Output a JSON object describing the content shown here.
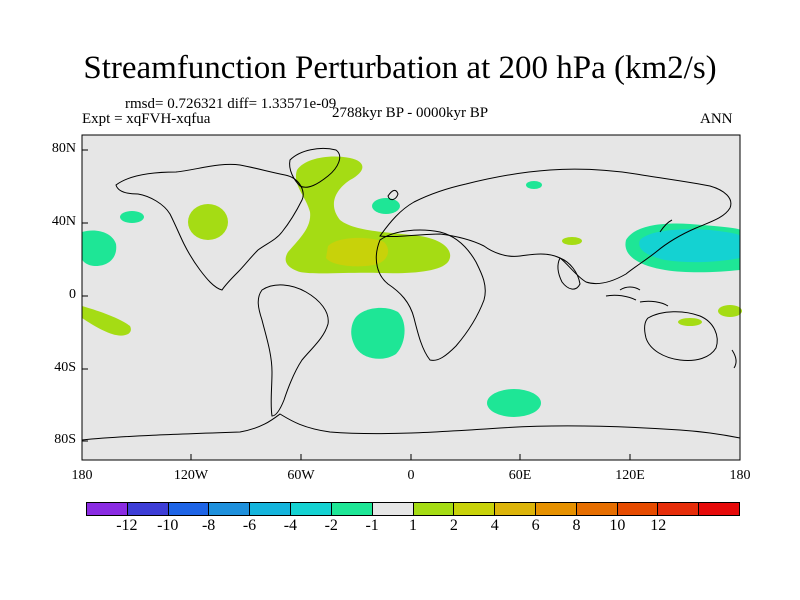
{
  "title": "Streamfunction Perturbation at 200 hPa (km2/s)",
  "stats": "rmsd= 0.726321 diff= 1.33571e-09",
  "period": "2788kyr BP - 0000kyr BP",
  "experiment": "Expt = xqFVH-xqfua",
  "season": "ANN",
  "y_ticks": [
    "80N",
    "40N",
    "0",
    "40S",
    "80S"
  ],
  "x_ticks": [
    "180",
    "120W",
    "60W",
    "0",
    "60E",
    "120E",
    "180"
  ],
  "colorbar": {
    "colors": [
      "#8a2be2",
      "#3d3dd6",
      "#1e64e6",
      "#1e90dc",
      "#14b4dc",
      "#14d2d2",
      "#1ee696",
      "#e6e6e6",
      "#a5dc14",
      "#c8d20a",
      "#dcb40a",
      "#e69100",
      "#e66e00",
      "#e64b00",
      "#e62d0a",
      "#e60a0a"
    ],
    "labels": [
      "-12",
      "-10",
      "-8",
      "-6",
      "-4",
      "-2",
      "-1",
      "1",
      "2",
      "4",
      "6",
      "8",
      "10",
      "12"
    ]
  },
  "colors": {
    "ocean_background": "#e6e6e6",
    "positive_green": "#a5dc14",
    "positive_yellow": "#c8d20a",
    "negative_green": "#1ee696",
    "negative_cyan": "#14d2d2"
  }
}
